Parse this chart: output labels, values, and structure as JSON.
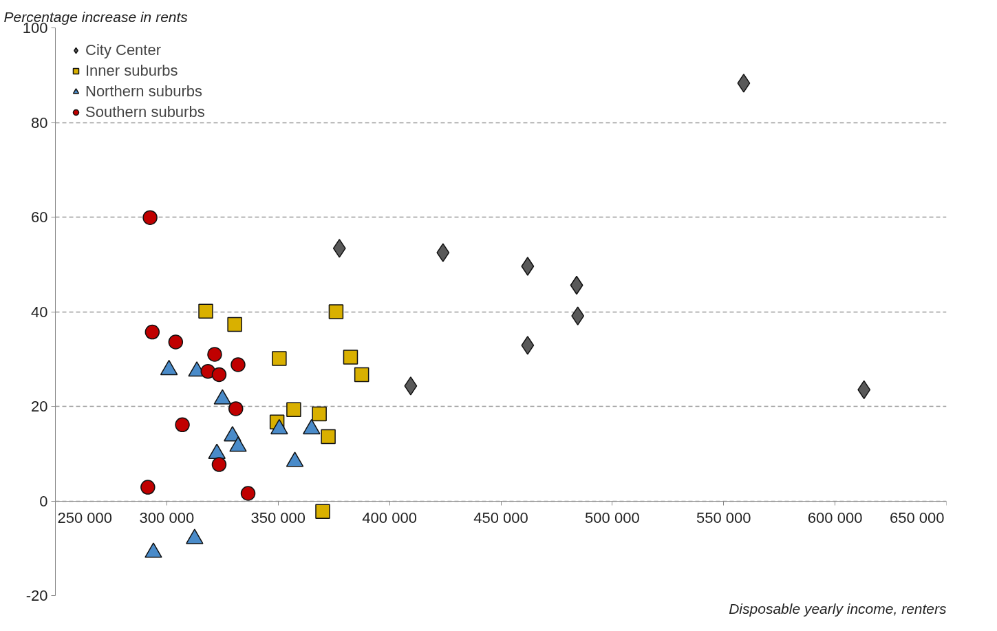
{
  "chart_data": {
    "type": "scatter",
    "ylabel": "Percentage increase in rents",
    "xlabel": "Disposable yearly income, renters",
    "xlim": [
      250000,
      650000
    ],
    "xticks": [
      {
        "value": 250000,
        "label": "250 000"
      },
      {
        "value": 300000,
        "label": "300 000"
      },
      {
        "value": 350000,
        "label": "350 000"
      },
      {
        "value": 400000,
        "label": "400 000"
      },
      {
        "value": 450000,
        "label": "450 000"
      },
      {
        "value": 500000,
        "label": "500 000"
      },
      {
        "value": 550000,
        "label": "550 000"
      },
      {
        "value": 600000,
        "label": "600 000"
      },
      {
        "value": 650000,
        "label": "650 000"
      }
    ],
    "ylim": [
      -20,
      100
    ],
    "yticks": [
      -20,
      0,
      20,
      40,
      60,
      80,
      100
    ],
    "grid": "y",
    "legend": "top left",
    "series": [
      {
        "name": "City Center",
        "color": "#595959",
        "marker": "diamond",
        "x": [
          377500,
          424000,
          462000,
          484000,
          484500,
          462000,
          409500,
          559000,
          613000
        ],
        "values": [
          53.4,
          52.5,
          49.6,
          45.6,
          39.1,
          32.9,
          24.3,
          88.3,
          23.5
        ]
      },
      {
        "name": "Inner suburbs",
        "color": "#d9b000",
        "marker": "square",
        "x": [
          317500,
          330500,
          376000,
          350500,
          382500,
          387500,
          357000,
          368500,
          349500,
          372500,
          370000
        ],
        "values": [
          40.1,
          37.3,
          40.0,
          30.1,
          30.4,
          26.7,
          19.3,
          18.4,
          16.7,
          13.6,
          -2.2
        ]
      },
      {
        "name": "Northern suburbs",
        "color": "#4a8bc9",
        "marker": "triangle",
        "x": [
          301000,
          313500,
          325000,
          322500,
          329500,
          332000,
          350500,
          365000,
          357500,
          294000,
          312500
        ],
        "values": [
          27.7,
          27.4,
          21.5,
          10.0,
          13.7,
          11.5,
          15.2,
          15.2,
          8.3,
          -10.9,
          -8.0
        ]
      },
      {
        "name": "Southern suburbs",
        "color": "#c00000",
        "marker": "circle",
        "x": [
          292500,
          293500,
          304000,
          321500,
          318500,
          323500,
          332000,
          331000,
          307000,
          323500,
          291500,
          336500
        ],
        "values": [
          59.9,
          35.7,
          33.6,
          31.0,
          27.4,
          26.7,
          28.8,
          19.5,
          16.1,
          7.7,
          2.9,
          1.6
        ]
      }
    ]
  }
}
